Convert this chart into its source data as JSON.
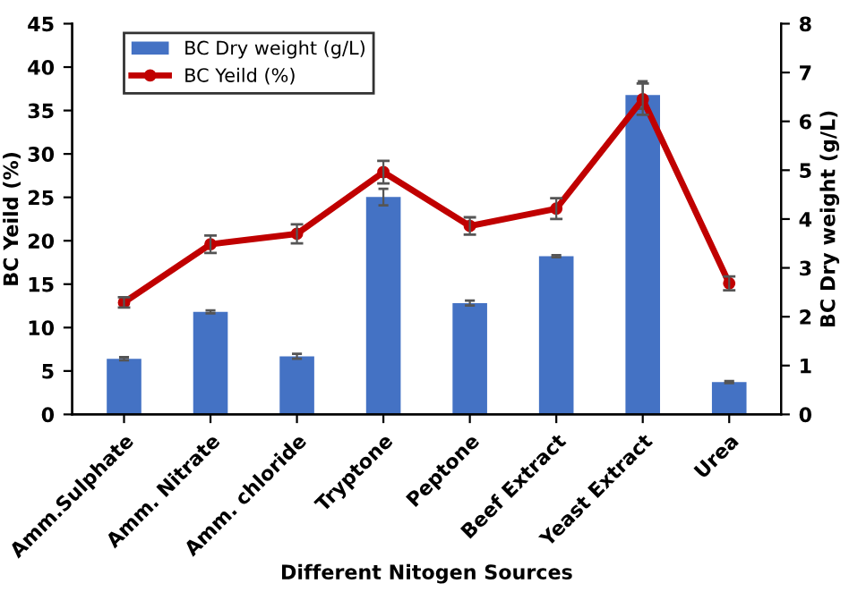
{
  "chart_data": {
    "type": "bar",
    "xlabel": "Different Nitogen Sources",
    "ylabel": "BC Yeild (%)",
    "y2label": "BC Dry weight (g/L)",
    "categories": [
      "Amm.Sulphate",
      "Amm. Nitrate",
      "Amm. chloride",
      "Tryptone",
      "Peptone",
      "Beef Extract",
      "Yeast Extract",
      "Urea"
    ],
    "series": [
      {
        "name": "BC Dry weight (g/L)",
        "axis": "y2",
        "color": "#4472c4",
        "values": [
          1.14,
          2.1,
          1.19,
          4.45,
          2.28,
          3.24,
          6.54,
          0.66
        ],
        "errors": [
          0.03,
          0.03,
          0.05,
          0.17,
          0.05,
          0.02,
          0.28,
          0.02
        ]
      },
      {
        "name": "BC Yeild (%)",
        "type": "line",
        "axis": "y",
        "color": "#c00000",
        "marker": "circle",
        "values": [
          12.9,
          19.6,
          20.8,
          27.9,
          21.7,
          23.7,
          36.3,
          15.1
        ],
        "errors": [
          0.6,
          1.0,
          1.1,
          1.3,
          1.0,
          1.2,
          1.8,
          0.8
        ]
      }
    ],
    "ylim": [
      0,
      45
    ],
    "yticks": [
      0,
      5,
      10,
      15,
      20,
      25,
      30,
      35,
      40,
      45
    ],
    "y2lim": [
      0,
      8
    ],
    "y2ticks": [
      0,
      1,
      2,
      3,
      4,
      5,
      6,
      7,
      8
    ],
    "legend": "top left",
    "grid": false
  }
}
